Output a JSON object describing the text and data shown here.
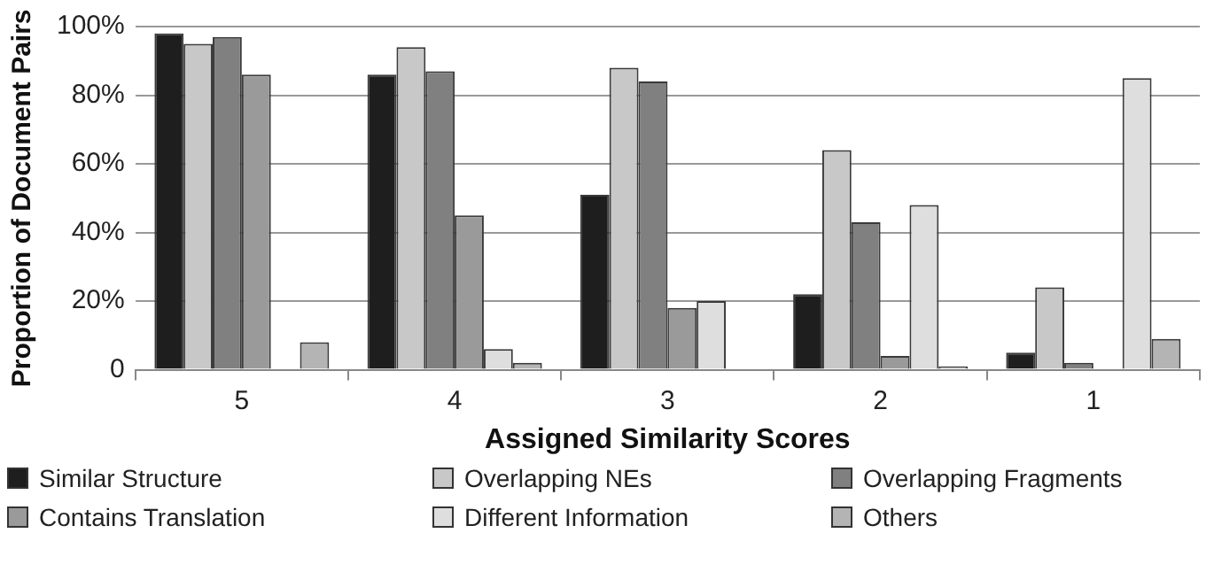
{
  "chart_data": {
    "type": "bar",
    "xlabel": "Assigned Similarity Scores",
    "ylabel": "Proportion of Document Pairs",
    "categories": [
      "5",
      "4",
      "3",
      "2",
      "1"
    ],
    "series": [
      {
        "name": "Similar Structure",
        "color": "#1e1e1e",
        "values": [
          98,
          86,
          51,
          22,
          5
        ]
      },
      {
        "name": "Overlapping NEs",
        "color": "#c8c8c8",
        "values": [
          95,
          94,
          88,
          64,
          24
        ]
      },
      {
        "name": "Overlapping Fragments",
        "color": "#808080",
        "values": [
          97,
          87,
          84,
          43,
          2
        ]
      },
      {
        "name": "Contains Translation",
        "color": "#9a9a9a",
        "values": [
          86,
          45,
          18,
          4,
          0
        ]
      },
      {
        "name": "Different Information",
        "color": "#dedede",
        "values": [
          0,
          6,
          20,
          48,
          85
        ]
      },
      {
        "name": "Others",
        "color": "#b4b4b4",
        "values": [
          8,
          2,
          0,
          1,
          9
        ]
      }
    ],
    "ylim": [
      0,
      100
    ],
    "yticks": [
      0,
      {
        "value": 20,
        "label": "20%"
      },
      {
        "value": 40,
        "label": "40%"
      },
      {
        "value": 60,
        "label": "60%"
      },
      {
        "value": 80,
        "label": "80%"
      },
      {
        "value": 100,
        "label": "100%"
      }
    ],
    "grid": "y",
    "legend": "bottom"
  }
}
